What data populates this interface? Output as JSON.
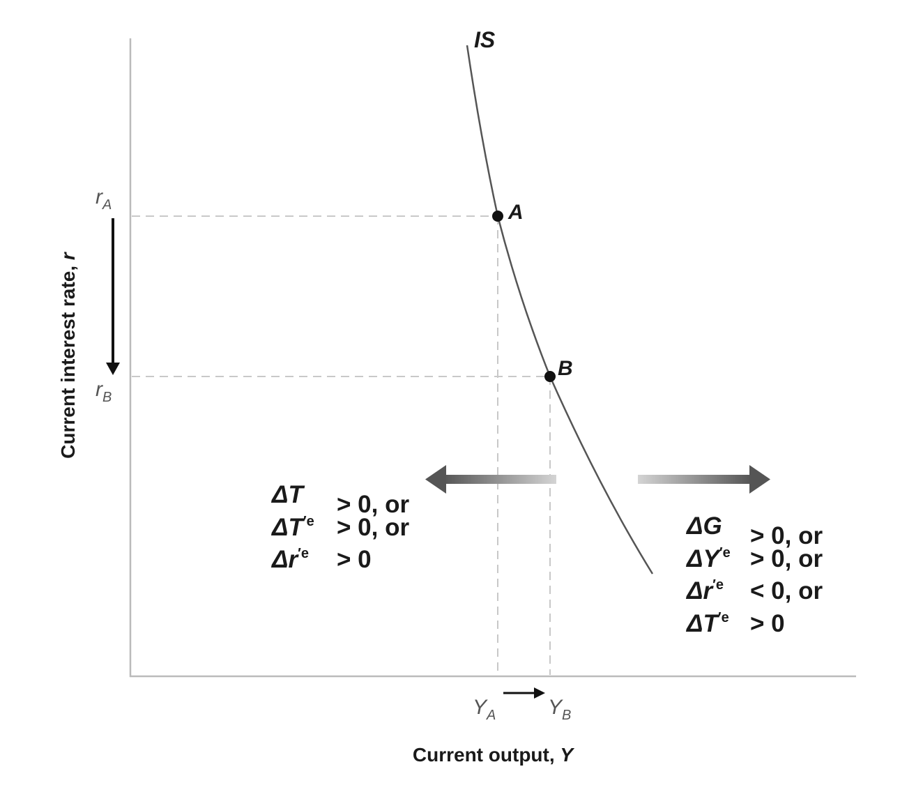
{
  "curve_label": "IS",
  "points": [
    {
      "label": "A"
    },
    {
      "label": "B"
    }
  ],
  "y_axis": {
    "label_main": "Current interest rate, ",
    "label_var": "r",
    "tick_a": {
      "base": "r",
      "sub": "A"
    },
    "tick_b": {
      "base": "r",
      "sub": "B"
    }
  },
  "x_axis": {
    "label_main": "Current output, ",
    "label_var": "Y",
    "tick_a": {
      "base": "Y",
      "sub": "A"
    },
    "tick_b": {
      "base": "Y",
      "sub": "B"
    }
  },
  "left_conditions": [
    {
      "var": "ΔT",
      "sup": "",
      "rest": "> 0, or"
    },
    {
      "var": "ΔT",
      "sup": "′e",
      "rest": "> 0, or"
    },
    {
      "var": "Δr",
      "sup": "′e",
      "rest": "> 0"
    }
  ],
  "right_conditions": [
    {
      "var": "ΔG",
      "sup": "",
      "rest": "> 0, or"
    },
    {
      "var": "ΔY",
      "sup": "′e",
      "rest": "> 0, or"
    },
    {
      "var": "Δr",
      "sup": "′e",
      "rest": "< 0, or"
    },
    {
      "var": "ΔT",
      "sup": "′e",
      "rest": "> 0"
    }
  ],
  "colors": {
    "curve": "#555555",
    "axis": "#bbbbbb",
    "dash": "#c8c8c8",
    "arrow_dark": "#555555",
    "arrow_light": "#d0d0d0"
  }
}
